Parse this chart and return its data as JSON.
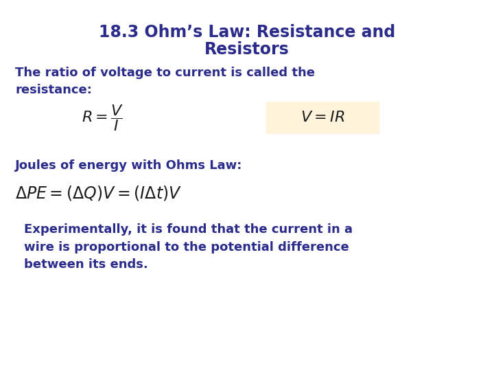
{
  "title_line1": "18.3 Ohm’s Law: Resistance and",
  "title_line2": "Resistors",
  "title_color": "#2B2B8C",
  "title_fontsize": 17,
  "body_color": "#2B2B8C",
  "body_fontsize": 13,
  "formula_color": "#1a1a1a",
  "text1": "The ratio of voltage to current is called the\nresistance:",
  "formula1": "$R = \\dfrac{V}{I}$",
  "formula2": "$V = IR$",
  "formula2_bg": "#FFF3DC",
  "text2": "Joules of energy with Ohms Law:",
  "formula3": "$\\Delta PE = (\\Delta Q)V = (I\\Delta t)V$",
  "text3": "Experimentally, it is found that the current in a\nwire is proportional to the potential difference\nbetween its ends.",
  "bg_color": "#FFFFFF"
}
